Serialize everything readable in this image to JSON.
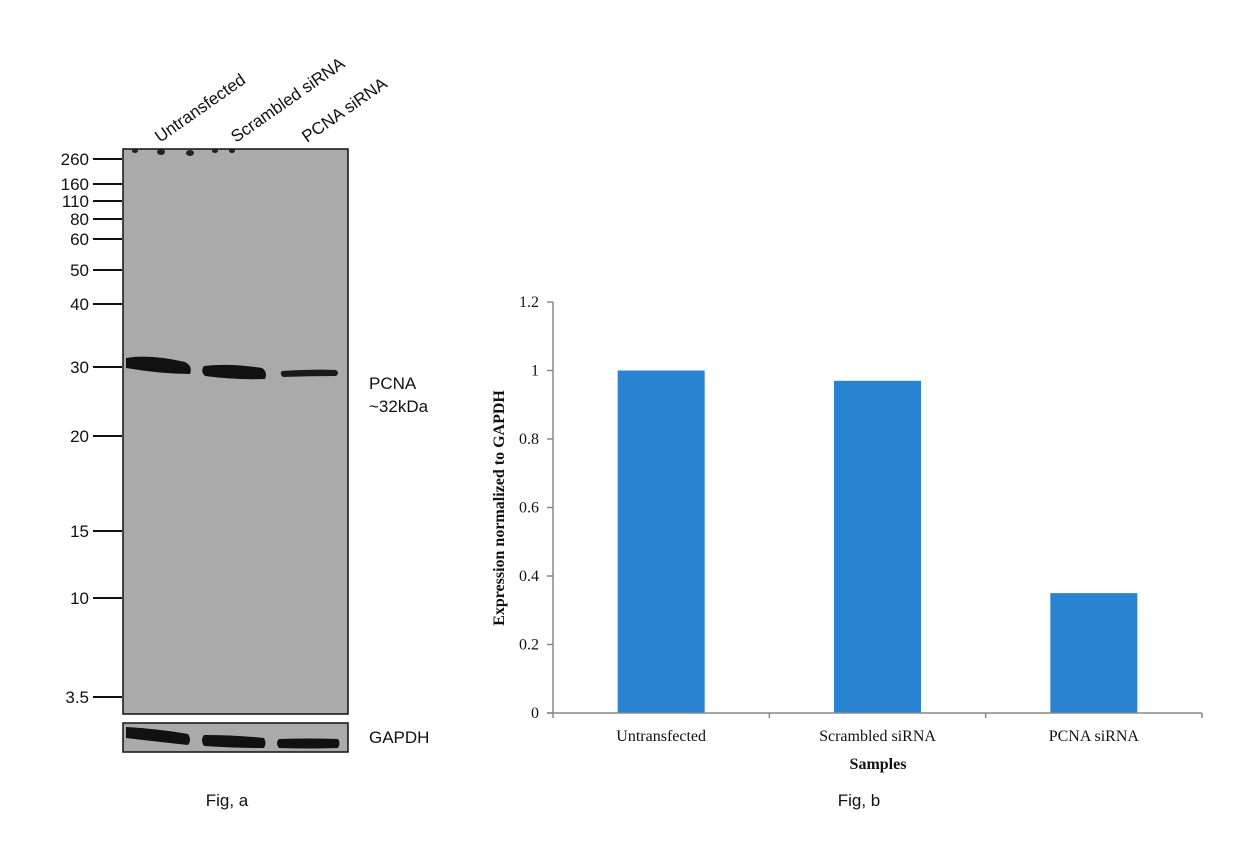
{
  "blot": {
    "lanes": [
      "Untransfected",
      "Scrambled siRNA",
      "PCNA siRNA"
    ],
    "markers": [
      "260",
      "160",
      "110",
      "80",
      "60",
      "50",
      "40",
      "30",
      "20",
      "15",
      "10",
      "3.5"
    ],
    "marker_kda": [
      260,
      160,
      110,
      80,
      60,
      50,
      40,
      30,
      20,
      15,
      10,
      3.5
    ],
    "target_label": "PCNA",
    "target_size": "~32kDa",
    "loading_control": "GAPDH",
    "caption": "Fig, a",
    "band_intensity_relative": [
      1.0,
      0.97,
      0.35
    ]
  },
  "chart_data": {
    "type": "bar",
    "categories": [
      "Untransfected",
      "Scrambled siRNA",
      "PCNA siRNA"
    ],
    "values": [
      1.0,
      0.97,
      0.35
    ],
    "title": "",
    "xlabel": "Samples",
    "ylabel": "Expression normalized to GAPDH",
    "ylim": [
      0,
      1.2
    ],
    "yticks": [
      "0",
      "0.2",
      "0.4",
      "0.6",
      "0.8",
      "1",
      "1.2"
    ],
    "ytick_values": [
      0,
      0.2,
      0.4,
      0.6,
      0.8,
      1.0,
      1.2
    ],
    "grid": false,
    "bar_color": "#2a83d0",
    "caption": "Fig, b"
  }
}
